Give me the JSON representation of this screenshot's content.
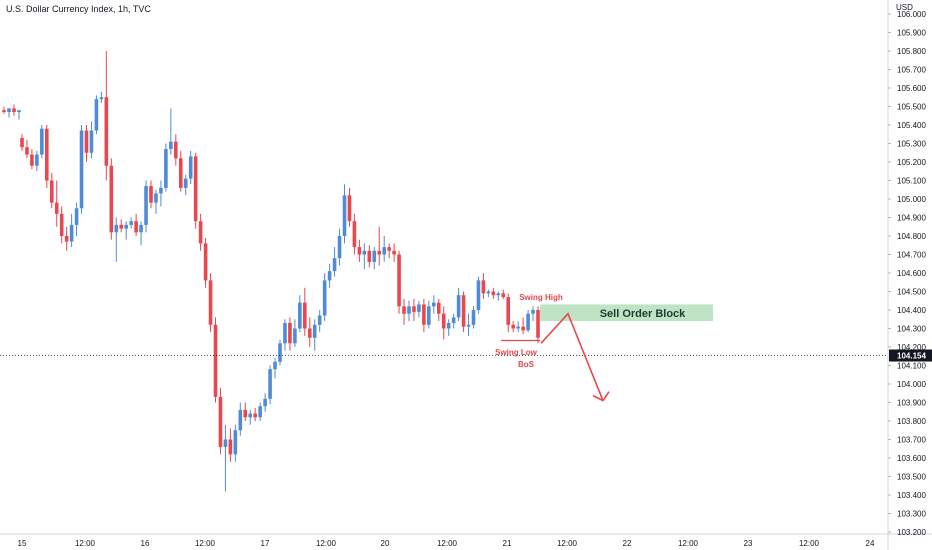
{
  "title": "U.S. Dollar Currency Index, 1h, TVC",
  "chart_data": {
    "type": "candlestick",
    "currency": "USD",
    "y_ticks": [
      "103.200",
      "103.300",
      "103.400",
      "103.500",
      "103.600",
      "103.700",
      "103.800",
      "103.900",
      "104.000",
      "104.100",
      "104.200",
      "104.300",
      "104.400",
      "104.500",
      "104.600",
      "104.700",
      "104.800",
      "104.900",
      "105.000",
      "105.100",
      "105.200",
      "105.300",
      "105.400",
      "105.500",
      "105.600",
      "105.700",
      "105.800",
      "105.900",
      "106.000"
    ],
    "ylim": [
      103.17,
      106.03
    ],
    "x_ticks": [
      "15",
      "12:00",
      "16",
      "12:00",
      "17",
      "12:00",
      "20",
      "12:00",
      "21",
      "12:00",
      "22",
      "12:00",
      "23",
      "12:00",
      "24"
    ],
    "current_price": "104.154",
    "candles": [
      [
        105.48,
        105.5,
        105.46,
        105.47
      ],
      [
        105.47,
        105.49,
        105.44,
        105.49
      ],
      [
        105.49,
        105.51,
        105.45,
        105.47
      ],
      [
        105.47,
        105.48,
        105.43,
        105.48
      ],
      [
        105.33,
        105.35,
        105.26,
        105.28
      ],
      [
        105.28,
        105.32,
        105.22,
        105.24
      ],
      [
        105.24,
        105.27,
        105.16,
        105.18
      ],
      [
        105.18,
        105.26,
        105.15,
        105.24
      ],
      [
        105.24,
        105.4,
        105.22,
        105.38
      ],
      [
        105.38,
        105.4,
        105.06,
        105.1
      ],
      [
        105.1,
        105.14,
        104.95,
        104.98
      ],
      [
        104.98,
        105.1,
        104.85,
        104.92
      ],
      [
        104.92,
        104.96,
        104.76,
        104.8
      ],
      [
        104.8,
        104.85,
        104.72,
        104.77
      ],
      [
        104.77,
        104.92,
        104.74,
        104.86
      ],
      [
        104.86,
        104.98,
        104.8,
        104.95
      ],
      [
        104.95,
        105.4,
        104.92,
        105.37
      ],
      [
        105.37,
        105.4,
        105.2,
        105.25
      ],
      [
        105.25,
        105.42,
        105.22,
        105.37
      ],
      [
        105.37,
        105.56,
        105.35,
        105.54
      ],
      [
        105.54,
        105.58,
        105.52,
        105.55
      ],
      [
        105.55,
        105.8,
        105.1,
        105.18
      ],
      [
        105.18,
        105.22,
        104.78,
        104.82
      ],
      [
        104.82,
        104.9,
        104.66,
        104.86
      ],
      [
        104.86,
        104.89,
        104.82,
        104.84
      ],
      [
        104.84,
        104.88,
        104.78,
        104.86
      ],
      [
        104.86,
        104.9,
        104.84,
        104.88
      ],
      [
        104.88,
        104.92,
        104.8,
        104.82
      ],
      [
        104.82,
        104.88,
        104.75,
        104.86
      ],
      [
        104.86,
        105.1,
        104.82,
        105.07
      ],
      [
        105.07,
        105.1,
        104.95,
        104.98
      ],
      [
        104.98,
        105.05,
        104.92,
        105.03
      ],
      [
        105.03,
        105.1,
        104.96,
        105.06
      ],
      [
        105.06,
        105.3,
        105.04,
        105.27
      ],
      [
        105.27,
        105.49,
        105.24,
        105.31
      ],
      [
        105.31,
        105.35,
        105.18,
        105.22
      ],
      [
        105.22,
        105.26,
        105.04,
        105.06
      ],
      [
        105.06,
        105.13,
        105.02,
        105.11
      ],
      [
        105.11,
        105.26,
        105.08,
        105.23
      ],
      [
        105.23,
        105.25,
        104.84,
        104.88
      ],
      [
        104.88,
        104.92,
        104.72,
        104.76
      ],
      [
        104.76,
        104.79,
        104.52,
        104.56
      ],
      [
        104.56,
        104.6,
        104.28,
        104.32
      ],
      [
        104.32,
        104.36,
        103.9,
        103.93
      ],
      [
        103.93,
        103.98,
        103.62,
        103.66
      ],
      [
        103.66,
        103.78,
        103.42,
        103.7
      ],
      [
        103.7,
        103.76,
        103.58,
        103.62
      ],
      [
        103.62,
        103.78,
        103.58,
        103.75
      ],
      [
        103.75,
        103.9,
        103.72,
        103.86
      ],
      [
        103.86,
        103.9,
        103.8,
        103.82
      ],
      [
        103.82,
        103.86,
        103.78,
        103.84
      ],
      [
        103.84,
        103.87,
        103.8,
        103.82
      ],
      [
        103.82,
        103.9,
        103.8,
        103.88
      ],
      [
        103.88,
        103.95,
        103.85,
        103.92
      ],
      [
        103.92,
        104.1,
        103.89,
        104.08
      ],
      [
        104.08,
        104.14,
        104.03,
        104.12
      ],
      [
        104.12,
        104.24,
        104.1,
        104.22
      ],
      [
        104.22,
        104.35,
        104.18,
        104.33
      ],
      [
        104.33,
        104.36,
        104.18,
        104.22
      ],
      [
        104.22,
        104.35,
        104.2,
        104.3
      ],
      [
        104.3,
        104.48,
        104.28,
        104.44
      ],
      [
        104.44,
        104.52,
        104.26,
        104.3
      ],
      [
        104.3,
        104.36,
        104.2,
        104.25
      ],
      [
        104.25,
        104.35,
        104.18,
        104.32
      ],
      [
        104.32,
        104.4,
        104.28,
        104.37
      ],
      [
        104.37,
        104.6,
        104.34,
        104.56
      ],
      [
        104.56,
        104.65,
        104.52,
        104.61
      ],
      [
        104.61,
        104.74,
        104.58,
        104.68
      ],
      [
        104.68,
        104.84,
        104.64,
        104.8
      ],
      [
        104.8,
        105.08,
        104.76,
        105.02
      ],
      [
        105.02,
        105.06,
        104.85,
        104.88
      ],
      [
        104.88,
        104.92,
        104.7,
        104.74
      ],
      [
        104.74,
        104.78,
        104.66,
        104.7
      ],
      [
        104.7,
        104.76,
        104.62,
        104.72
      ],
      [
        104.72,
        104.75,
        104.63,
        104.66
      ],
      [
        104.66,
        104.74,
        104.62,
        104.72
      ],
      [
        104.72,
        104.85,
        104.64,
        104.7
      ],
      [
        104.7,
        104.8,
        104.66,
        104.74
      ],
      [
        104.74,
        104.76,
        104.68,
        104.72
      ],
      [
        104.72,
        104.76,
        104.66,
        104.7
      ],
      [
        104.7,
        104.72,
        104.38,
        104.42
      ],
      [
        104.42,
        104.46,
        104.32,
        104.38
      ],
      [
        104.38,
        104.45,
        104.34,
        104.42
      ],
      [
        104.42,
        104.46,
        104.34,
        104.39
      ],
      [
        104.39,
        104.45,
        104.36,
        104.43
      ],
      [
        104.43,
        104.46,
        104.28,
        104.32
      ],
      [
        104.32,
        104.45,
        104.3,
        104.42
      ],
      [
        104.42,
        104.48,
        104.38,
        104.44
      ],
      [
        104.44,
        104.46,
        104.34,
        104.38
      ],
      [
        104.38,
        104.42,
        104.24,
        104.3
      ],
      [
        104.3,
        104.35,
        104.26,
        104.33
      ],
      [
        104.33,
        104.38,
        104.3,
        104.36
      ],
      [
        104.36,
        104.52,
        104.34,
        104.48
      ],
      [
        104.48,
        104.5,
        104.28,
        104.31
      ],
      [
        104.31,
        104.38,
        104.26,
        104.32
      ],
      [
        104.32,
        104.42,
        104.3,
        104.4
      ],
      [
        104.4,
        104.58,
        104.38,
        104.56
      ],
      [
        104.56,
        104.6,
        104.46,
        104.49
      ],
      [
        104.49,
        104.51,
        104.47,
        104.5
      ],
      [
        104.5,
        104.52,
        104.46,
        104.48
      ],
      [
        104.48,
        104.5,
        104.45,
        104.49
      ],
      [
        104.49,
        104.51,
        104.46,
        104.47
      ],
      [
        104.47,
        104.49,
        104.28,
        104.32
      ],
      [
        104.32,
        104.34,
        104.28,
        104.3
      ],
      [
        104.3,
        104.34,
        104.28,
        104.31
      ],
      [
        104.31,
        104.36,
        104.27,
        104.29
      ],
      [
        104.29,
        104.4,
        104.28,
        104.38
      ],
      [
        104.38,
        104.42,
        104.34,
        104.4
      ],
      [
        104.4,
        104.42,
        104.22,
        104.25
      ]
    ],
    "annotations": {
      "swing_high": "Swing High",
      "swing_low": "Swing Low",
      "bos": "BoS",
      "order_block": "Sell Order Block",
      "order_block_top": 104.43,
      "order_block_bottom": 104.34,
      "swing_low_level": 104.235,
      "projection": [
        [
          104.22,
          104.38
        ],
        [
          104.38,
          103.91
        ]
      ]
    },
    "colors": {
      "up": "#4f8bd6",
      "down": "#e8474f",
      "zone_fill": "#bfe3c4",
      "price_tag": "#131722"
    }
  }
}
